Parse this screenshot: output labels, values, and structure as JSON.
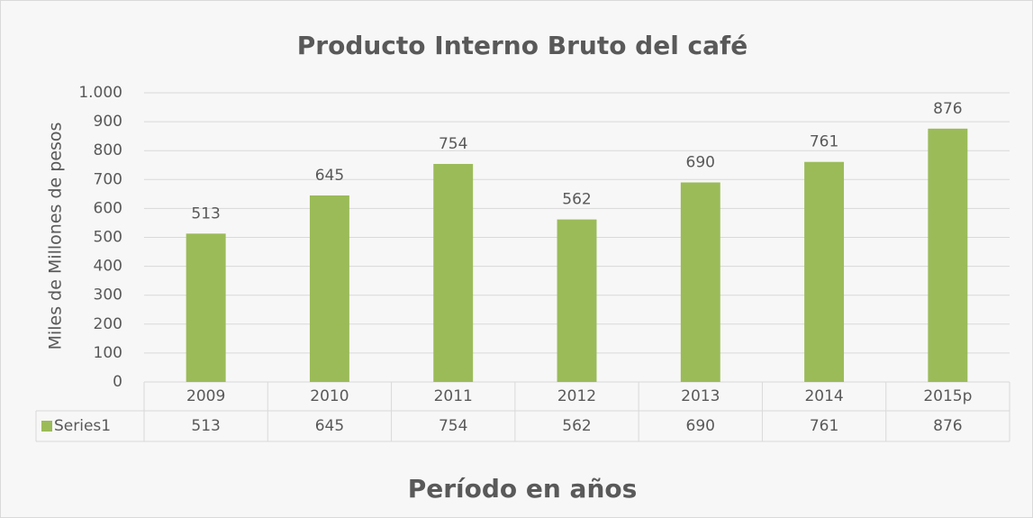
{
  "chart_data": {
    "type": "bar",
    "title": "Producto Interno Bruto del café",
    "x_label": "Período en años",
    "y_label": "Miles de Millones de pesos",
    "categories": [
      "2009",
      "2010",
      "2011",
      "2012",
      "2013",
      "2014",
      "2015p"
    ],
    "series": [
      {
        "name": "Series1",
        "color": "#9bbb59",
        "values": [
          513,
          645,
          754,
          562,
          690,
          761,
          876
        ]
      }
    ],
    "ylim": [
      0,
      1000
    ],
    "yticks": [
      0,
      100,
      200,
      300,
      400,
      500,
      600,
      700,
      800,
      900,
      {
        "value": 1000,
        "label": "1.000"
      }
    ],
    "grid": true,
    "data_table": true
  }
}
